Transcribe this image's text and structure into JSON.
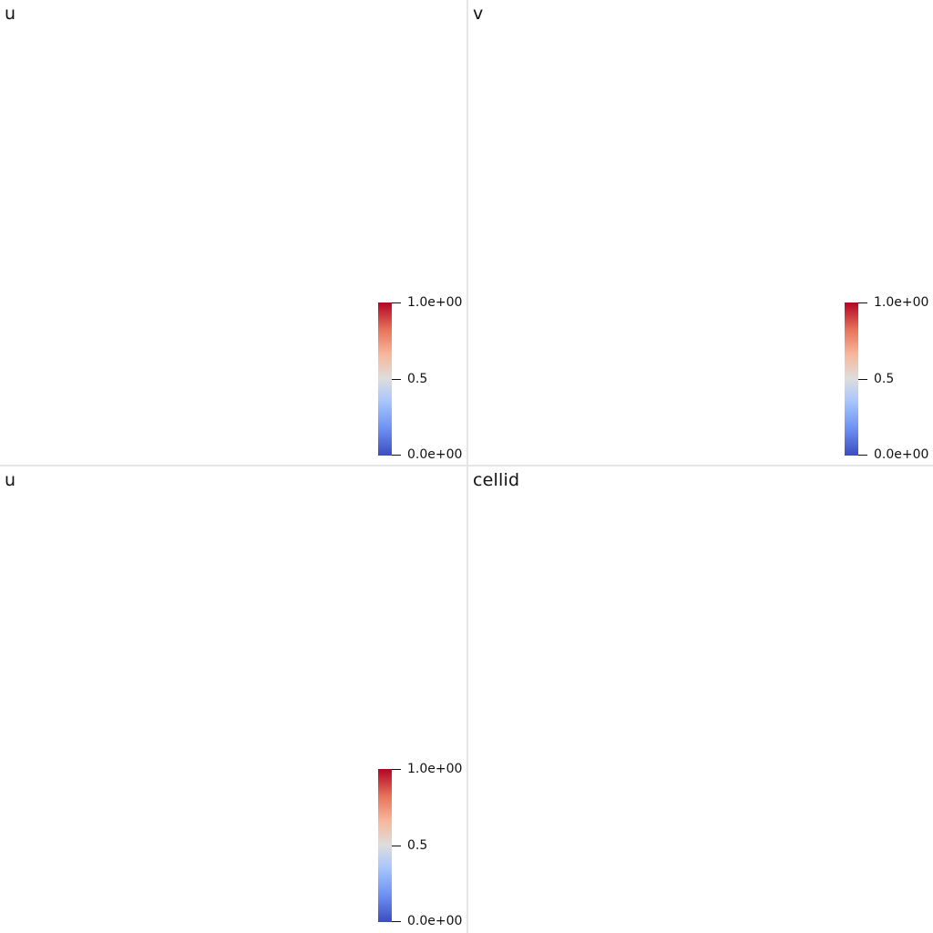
{
  "views": [
    {
      "title": "u",
      "colorbar": {
        "max_label": "1.0e+00",
        "mid_label": "0.5",
        "min_label": "0.0e+00"
      }
    },
    {
      "title": "v",
      "colorbar": {
        "max_label": "1.0e+00",
        "mid_label": "0.5",
        "min_label": "0.0e+00"
      }
    },
    {
      "title": "u",
      "colorbar": {
        "max_label": "1.0e+00",
        "mid_label": "0.5",
        "min_label": "0.0e+00"
      }
    },
    {
      "title": "cellid"
    }
  ],
  "colormap": {
    "name": "cool-to-warm",
    "low_color": "#3b4cc0",
    "mid_color": "#dddddd",
    "high_color": "#b40426"
  },
  "background_color": "#ffffff",
  "divider_color": "#e6e6e6"
}
